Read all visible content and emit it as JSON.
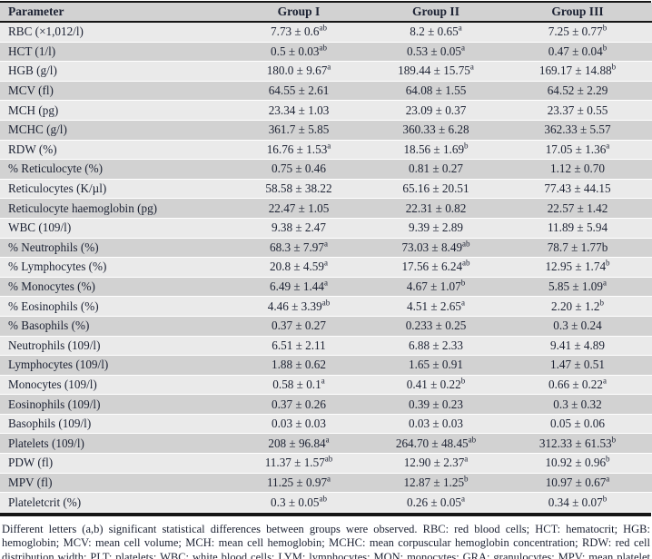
{
  "colors": {
    "row_light": "#eaeaea",
    "row_dark": "#d2d2d2",
    "border": "#161616",
    "text": "#1c2233"
  },
  "table": {
    "columns": [
      "Parameter",
      "Group I",
      "Group II",
      "Group III"
    ],
    "rows": [
      {
        "parameter": "RBC (×1,012/l)",
        "values": [
          {
            "text": "7.73 ± 0.6",
            "sup": "ab"
          },
          {
            "text": "8.2 ± 0.65",
            "sup": "a"
          },
          {
            "text": "7.25 ± 0.77",
            "sup": "b"
          }
        ]
      },
      {
        "parameter": "HCT (1/l)",
        "values": [
          {
            "text": "0.5 ± 0.03",
            "sup": "ab"
          },
          {
            "text": "0.53 ± 0.05",
            "sup": "a"
          },
          {
            "text": "0.47 ± 0.04",
            "sup": "b"
          }
        ]
      },
      {
        "parameter": "HGB (g/l)",
        "values": [
          {
            "text": "180.0 ± 9.67",
            "sup": "a"
          },
          {
            "text": "189.44 ± 15.75",
            "sup": "a"
          },
          {
            "text": "169.17 ± 14.88",
            "sup": "b"
          }
        ]
      },
      {
        "parameter": "MCV (fl)",
        "values": [
          {
            "text": "64.55 ± 2.61",
            "sup": ""
          },
          {
            "text": "64.08 ± 1.55",
            "sup": ""
          },
          {
            "text": "64.52 ± 2.29",
            "sup": ""
          }
        ]
      },
      {
        "parameter": "MCH (pg)",
        "values": [
          {
            "text": "23.34 ± 1.03",
            "sup": ""
          },
          {
            "text": "23.09 ± 0.37",
            "sup": ""
          },
          {
            "text": "23.37 ± 0.55",
            "sup": ""
          }
        ]
      },
      {
        "parameter": "MCHC (g/l)",
        "values": [
          {
            "text": "361.7 ± 5.85",
            "sup": ""
          },
          {
            "text": "360.33 ± 6.28",
            "sup": ""
          },
          {
            "text": "362.33 ± 5.57",
            "sup": ""
          }
        ]
      },
      {
        "parameter": "RDW (%)",
        "values": [
          {
            "text": "16.76 ± 1.53",
            "sup": "a"
          },
          {
            "text": "18.56 ± 1.69",
            "sup": "b"
          },
          {
            "text": "17.05 ± 1.36",
            "sup": "a"
          }
        ]
      },
      {
        "parameter": "% Reticulocyte (%)",
        "values": [
          {
            "text": "0.75 ± 0.46",
            "sup": ""
          },
          {
            "text": "0.81 ± 0.27",
            "sup": ""
          },
          {
            "text": "1.12 ± 0.70",
            "sup": ""
          }
        ]
      },
      {
        "parameter": "Reticulocytes (K/µl)",
        "values": [
          {
            "text": "58.58 ± 38.22",
            "sup": ""
          },
          {
            "text": "65.16 ± 20.51",
            "sup": ""
          },
          {
            "text": "77.43 ± 44.15",
            "sup": ""
          }
        ]
      },
      {
        "parameter": "Reticulocyte haemoglobin (pg)",
        "values": [
          {
            "text": "22.47 ± 1.05",
            "sup": ""
          },
          {
            "text": "22.31 ± 0.82",
            "sup": ""
          },
          {
            "text": "22.57 ± 1.42",
            "sup": ""
          }
        ]
      },
      {
        "parameter": "WBC (109/l)",
        "values": [
          {
            "text": "9.38 ± 2.47",
            "sup": ""
          },
          {
            "text": "9.39 ± 2.89",
            "sup": ""
          },
          {
            "text": "11.89 ± 5.94",
            "sup": ""
          }
        ]
      },
      {
        "parameter": "% Neutrophils (%)",
        "values": [
          {
            "text": "68.3 ± 7.97",
            "sup": "a"
          },
          {
            "text": "73.03 ± 8.49",
            "sup": "ab"
          },
          {
            "text": "78.7 ± 1.77b",
            "sup": ""
          }
        ]
      },
      {
        "parameter": "% Lymphocytes (%)",
        "values": [
          {
            "text": "20.8 ± 4.59",
            "sup": "a"
          },
          {
            "text": "17.56 ± 6.24",
            "sup": "ab"
          },
          {
            "text": "12.95 ± 1.74",
            "sup": "b"
          }
        ]
      },
      {
        "parameter": "% Monocytes (%)",
        "values": [
          {
            "text": "6.49 ± 1.44",
            "sup": "a"
          },
          {
            "text": "4.67 ± 1.07",
            "sup": "b"
          },
          {
            "text": "5.85 ± 1.09",
            "sup": "a"
          }
        ]
      },
      {
        "parameter": "% Eosinophils (%)",
        "values": [
          {
            "text": "4.46 ± 3.39",
            "sup": "ab"
          },
          {
            "text": "4.51 ± 2.65",
            "sup": "a"
          },
          {
            "text": "2.20 ± 1.2",
            "sup": "b"
          }
        ]
      },
      {
        "parameter": "% Basophils (%)",
        "values": [
          {
            "text": "0.37 ± 0.27",
            "sup": ""
          },
          {
            "text": "0.233 ± 0.25",
            "sup": ""
          },
          {
            "text": "0.3 ± 0.24",
            "sup": ""
          }
        ]
      },
      {
        "parameter": "Neutrophils (109/l)",
        "values": [
          {
            "text": "6.51 ± 2.11",
            "sup": ""
          },
          {
            "text": "6.88 ± 2.33",
            "sup": ""
          },
          {
            "text": "9.41 ± 4.89",
            "sup": ""
          }
        ]
      },
      {
        "parameter": "Lymphocytes (109/l)",
        "values": [
          {
            "text": "1.88 ± 0.62",
            "sup": ""
          },
          {
            "text": "1.65 ± 0.91",
            "sup": ""
          },
          {
            "text": "1.47 ± 0.51",
            "sup": ""
          }
        ]
      },
      {
        "parameter": "Monocytes (109/l)",
        "values": [
          {
            "text": "0.58 ± 0.1",
            "sup": "a"
          },
          {
            "text": "0.41 ± 0.22",
            "sup": "b"
          },
          {
            "text": "0.66 ± 0.22",
            "sup": "a"
          }
        ]
      },
      {
        "parameter": "Eosinophils (109/l)",
        "values": [
          {
            "text": "0.37 ± 0.26",
            "sup": ""
          },
          {
            "text": "0.39 ± 0.23",
            "sup": ""
          },
          {
            "text": "0.3 ± 0.32",
            "sup": ""
          }
        ]
      },
      {
        "parameter": "Basophils (109/l)",
        "values": [
          {
            "text": "0.03 ± 0.03",
            "sup": ""
          },
          {
            "text": "0.03 ± 0.03",
            "sup": ""
          },
          {
            "text": "0.05 ± 0.06",
            "sup": ""
          }
        ]
      },
      {
        "parameter": "Platelets (109/l)",
        "values": [
          {
            "text": "208 ± 96.84",
            "sup": "a"
          },
          {
            "text": "264.70 ± 48.45",
            "sup": "ab"
          },
          {
            "text": "312.33 ± 61.53",
            "sup": "b"
          }
        ]
      },
      {
        "parameter": "PDW (fl)",
        "values": [
          {
            "text": "11.37 ± 1.57",
            "sup": "ab"
          },
          {
            "text": "12.90 ± 2.37",
            "sup": "a"
          },
          {
            "text": "10.92 ± 0.96",
            "sup": "b"
          }
        ]
      },
      {
        "parameter": "MPV (fl)",
        "values": [
          {
            "text": "11.25 ± 0.97",
            "sup": "a"
          },
          {
            "text": "12.87 ± 1.25",
            "sup": "b"
          },
          {
            "text": "10.97 ± 0.67",
            "sup": "a"
          }
        ]
      },
      {
        "parameter": "Plateletcrit (%)",
        "values": [
          {
            "text": "0.3 ± 0.05",
            "sup": "ab"
          },
          {
            "text": "0.26 ± 0.05",
            "sup": "a"
          },
          {
            "text": "0.34 ± 0.07",
            "sup": "b"
          }
        ]
      }
    ]
  },
  "footnote": {
    "text": "Different letters (a,b) significant statistical differences between groups were observed. RBC: red blood cells; HCT: hematocrit; HGB: hemoglobin; MCV: mean cell volume; MCH: mean cell hemoglobin; MCHC: mean corpuscular hemoglobin concentration; RDW: red cell distribution width; PLT: platelets; WBC: white blood cells; LYM: lymphocytes; MON: monocytes; GRA: granulocytes; MPV: mean platelet volume."
  }
}
